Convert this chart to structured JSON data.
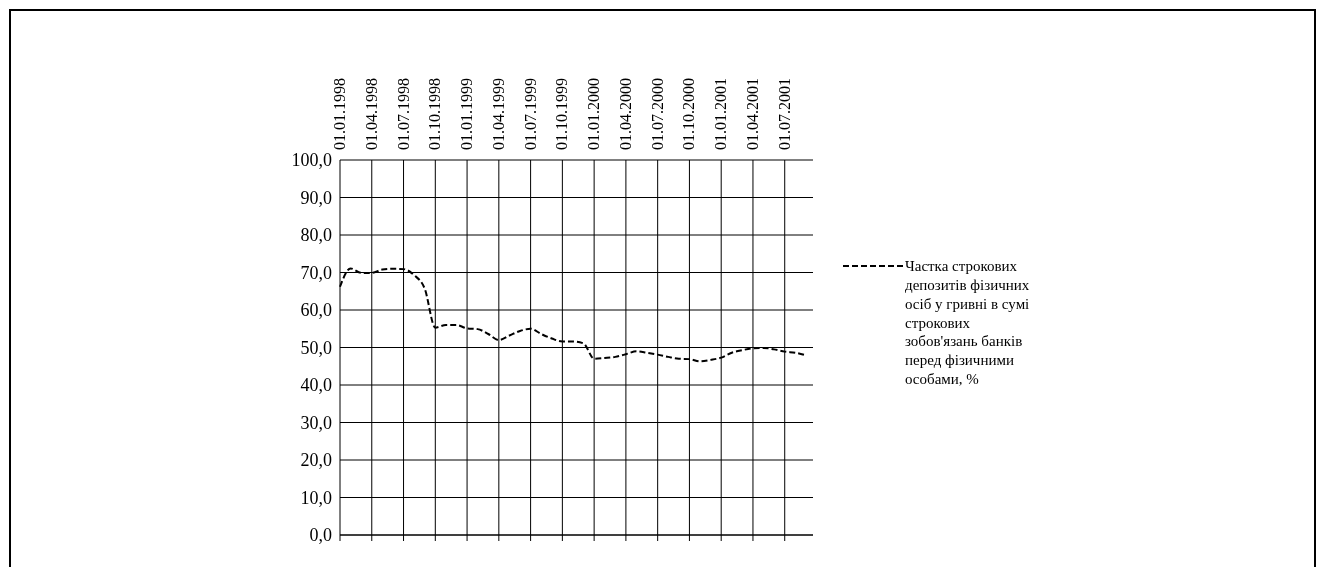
{
  "chart_data": {
    "type": "line",
    "categories": [
      "01.01.1998",
      null,
      null,
      "01.04.1998",
      null,
      null,
      "01.07.1998",
      null,
      null,
      "01.10.1998",
      null,
      null,
      "01.01.1999",
      null,
      null,
      "01.04.1999",
      null,
      null,
      "01.07.1999",
      null,
      null,
      "01.10.1999",
      null,
      null,
      "01.01.2000",
      null,
      null,
      "01.04.2000",
      null,
      null,
      "01.07.2000",
      null,
      null,
      "01.10.2000",
      null,
      null,
      "01.01.2001",
      null,
      null,
      "01.04.2001",
      null,
      null,
      "01.07.2001",
      null,
      null
    ],
    "series": [
      {
        "name": "Частка строкових депозитів фізичних осіб у гривні в сумі строкових зобов'язань банків перед фізичними особами, %",
        "color": "#000000",
        "values": [
          66.2,
          71.1,
          69.9,
          69.9,
          70.8,
          71.0,
          70.9,
          69.3,
          65.7,
          55.3,
          56.0,
          56.0,
          55.1,
          54.9,
          53.6,
          52.0,
          53.2,
          54.4,
          55.0,
          53.6,
          52.4,
          51.6,
          51.6,
          51.1,
          47.0,
          47.2,
          47.5,
          48.2,
          49.0,
          48.6,
          48.1,
          47.5,
          47.0,
          46.9,
          46.3,
          46.7,
          47.3,
          48.6,
          49.3,
          49.8,
          49.9,
          49.5,
          48.9,
          48.6,
          47.9
        ]
      }
    ],
    "ylim": [
      0,
      100
    ],
    "yticks": [
      {
        "value": 0,
        "label": "0,0"
      },
      {
        "value": 10,
        "label": "10,0"
      },
      {
        "value": 20,
        "label": "20,0"
      },
      {
        "value": 30,
        "label": "30,0"
      },
      {
        "value": 40,
        "label": "40,0"
      },
      {
        "value": 50,
        "label": "50,0"
      },
      {
        "value": 60,
        "label": "60,0"
      },
      {
        "value": 70,
        "label": "70,0"
      },
      {
        "value": 80,
        "label": "80,0"
      },
      {
        "value": 90,
        "label": "90,0"
      },
      {
        "value": 100,
        "label": "100,0"
      }
    ],
    "grid": true,
    "legend": "right",
    "marker": "none",
    "line_style": "dashed"
  }
}
